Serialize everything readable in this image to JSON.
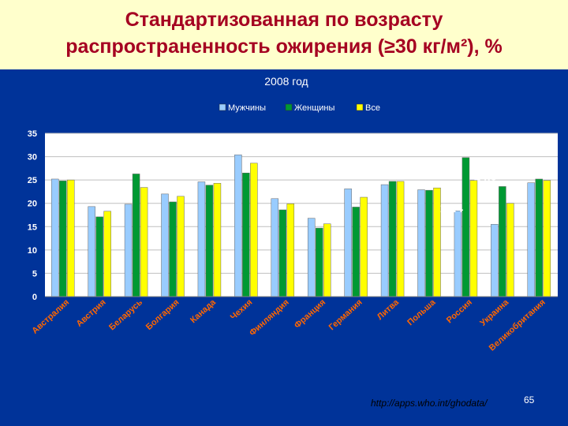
{
  "slide": {
    "title": "Стандартизованная по возрасту\nраспространенность ожирения (≥30 кг/м²), %",
    "source": "http://apps.who.int/ghodata/",
    "page_number": "65"
  },
  "colors": {
    "background": "#003399",
    "title_band": "#FFFFCC",
    "title_text": "#A50021",
    "plot_area": "#FFFFFF"
  },
  "chart_data": {
    "type": "bar",
    "title": "2008 год",
    "categories": [
      "Австралия",
      "Австрия",
      "Беларусь",
      "Болгария",
      "Канада",
      "Чехия",
      "Финляндия",
      "Франция",
      "Германия",
      "Литва",
      "Польша",
      "Россия",
      "Украина",
      "Великобритания"
    ],
    "series": [
      {
        "name": "Мужчины",
        "color": "#99CCFF",
        "values": [
          25.2,
          19.3,
          19.8,
          22.0,
          24.6,
          30.4,
          21.0,
          16.8,
          23.1,
          24.0,
          22.9,
          18.4,
          15.5,
          24.4
        ]
      },
      {
        "name": "Женщины",
        "color": "#009933",
        "values": [
          24.8,
          17.1,
          26.3,
          20.3,
          23.9,
          26.5,
          18.6,
          14.7,
          19.2,
          24.7,
          22.8,
          29.8,
          23.6,
          25.2
        ]
      },
      {
        "name": "Все",
        "color": "#FFFF00",
        "values": [
          25.0,
          18.3,
          23.4,
          21.5,
          24.3,
          28.6,
          19.9,
          15.6,
          21.3,
          24.7,
          23.3,
          24.9,
          20.0,
          24.9
        ]
      }
    ],
    "yticks": [
      "0",
      "5",
      "10",
      "15",
      "20",
      "25",
      "30",
      "35"
    ],
    "ylim": [
      0,
      35
    ],
    "grid": true,
    "legend": "top-center",
    "annotations": [
      {
        "text": "29.8",
        "category": "Россия",
        "value": 29.8
      },
      {
        "text": "24.9",
        "category": "Россия",
        "value": 24.9
      },
      {
        "text": "18.4",
        "category": "Россия",
        "value": 18.4
      }
    ]
  }
}
